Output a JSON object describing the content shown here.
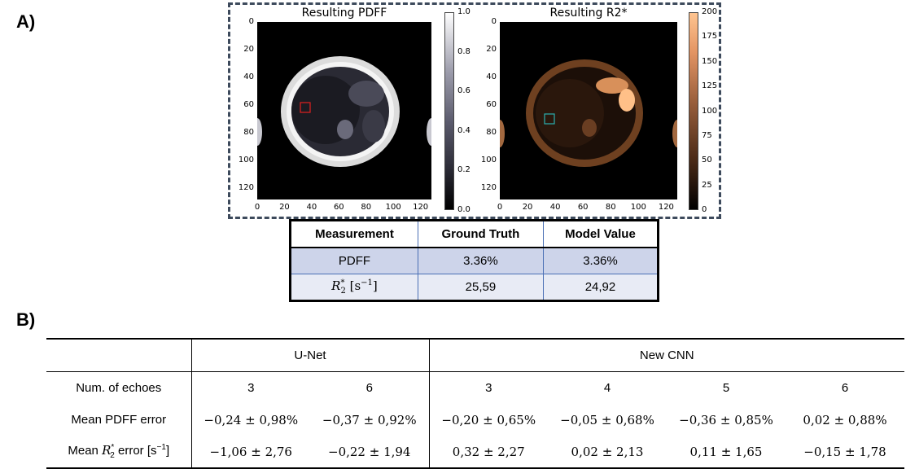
{
  "panel_a_label": "A)",
  "panel_b_label": "B)",
  "plots": [
    {
      "title": "Resulting PDFF",
      "x_ticks": [
        "0",
        "20",
        "40",
        "60",
        "80",
        "100",
        "120"
      ],
      "y_ticks": [
        "0",
        "20",
        "40",
        "60",
        "80",
        "100",
        "120"
      ],
      "colorbar_ticks": [
        "1.0",
        "0.8",
        "0.6",
        "0.4",
        "0.2",
        "0.0"
      ],
      "colormap": "gray",
      "roi_color": "#e02020"
    },
    {
      "title": "Resulting R2*",
      "x_ticks": [
        "0",
        "20",
        "40",
        "60",
        "80",
        "100",
        "120"
      ],
      "y_ticks": [
        "0",
        "20",
        "40",
        "60",
        "80",
        "100",
        "120"
      ],
      "colorbar_ticks": [
        "200",
        "175",
        "150",
        "125",
        "100",
        "75",
        "50",
        "25",
        "0"
      ],
      "colormap": "copper",
      "roi_color": "#2ab0b0"
    }
  ],
  "measurement_table": {
    "headers": [
      "Measurement",
      "Ground Truth",
      "Model Value"
    ],
    "row_pdff": {
      "label": "PDFF",
      "ground_truth": "3.36%",
      "model_value": "3.36%"
    },
    "row_r2": {
      "label_base": "R",
      "label_sup": "*",
      "label_sub": "2",
      "label_unit_pre": " [s",
      "label_unit_sup": "−1",
      "label_unit_post": "]",
      "ground_truth": "25,59",
      "model_value": "24,92"
    }
  },
  "results_table": {
    "groups": [
      "U-Net",
      "New CNN"
    ],
    "echoes_label": "Num. of echoes",
    "echoes": [
      "3",
      "6",
      "3",
      "4",
      "5",
      "6"
    ],
    "pdff_label": "Mean PDFF error",
    "pdff_errors": [
      "−0,24 ± 0,98%",
      "−0,37 ± 0,92%",
      "−0,20 ± 0,65%",
      "−0,05 ± 0,68%",
      "−0,36 ± 0,85%",
      "0,02 ± 0,88%"
    ],
    "r2_label_pre": "Mean ",
    "r2_label_sym": "R",
    "r2_label_sub": "2",
    "r2_label_sup": "*",
    "r2_label_post": " error [s",
    "r2_label_unit_sup": "−1",
    "r2_label_end": "]",
    "r2_errors": [
      "−1,06 ± 2,76",
      "−0,22 ± 1,94",
      "0,32 ± 2,27",
      "0,02 ± 2,13",
      "0,11 ± 1,65",
      "−0,15 ± 1,78"
    ]
  }
}
